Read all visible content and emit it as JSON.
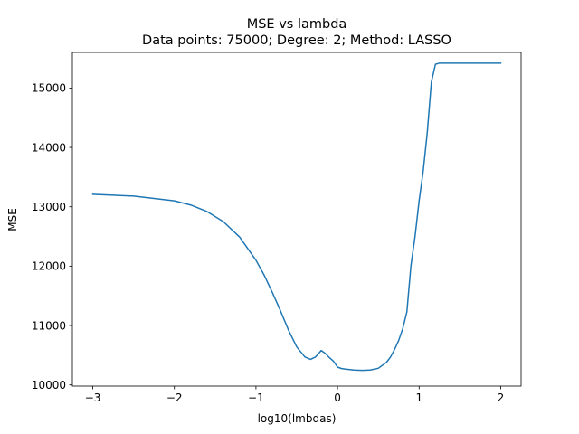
{
  "chart_data": {
    "type": "line",
    "title": "MSE vs lambda",
    "subtitle": "Data points: 75000; Degree: 2; Method: LASSO",
    "xlabel": "log10(lmbdas)",
    "ylabel": "MSE",
    "xlim": [
      -3.25,
      2.25
    ],
    "ylim": [
      9980,
      15600
    ],
    "xticks": [
      -3,
      -2,
      -1,
      0,
      1,
      2
    ],
    "xtick_labels": [
      "−3",
      "−2",
      "−1",
      "0",
      "1",
      "2"
    ],
    "yticks": [
      10000,
      11000,
      12000,
      13000,
      14000,
      15000
    ],
    "ytick_labels": [
      "10000",
      "11000",
      "12000",
      "13000",
      "14000",
      "15000"
    ],
    "grid": false,
    "line_color": "#1f77b4",
    "series": [
      {
        "x": [
          -3.0,
          -2.5,
          -2.0,
          -1.8,
          -1.6,
          -1.4,
          -1.2,
          -1.0,
          -0.9,
          -0.8,
          -0.7,
          -0.6,
          -0.5,
          -0.4,
          -0.33,
          -0.27,
          -0.2,
          -0.15,
          -0.1,
          -0.05,
          0.0,
          0.05,
          0.1,
          0.2,
          0.3,
          0.4,
          0.5,
          0.6,
          0.65,
          0.7,
          0.75,
          0.8,
          0.85,
          0.9,
          0.95,
          1.0,
          1.05,
          1.1,
          1.15,
          1.2,
          1.25,
          1.3,
          1.35,
          1.5,
          2.0
        ],
        "y": [
          13210,
          13180,
          13100,
          13030,
          12920,
          12750,
          12490,
          12100,
          11850,
          11560,
          11250,
          10920,
          10640,
          10470,
          10430,
          10470,
          10580,
          10530,
          10460,
          10400,
          10300,
          10275,
          10265,
          10250,
          10245,
          10250,
          10280,
          10380,
          10470,
          10600,
          10750,
          10950,
          11230,
          12010,
          12500,
          13100,
          13600,
          14250,
          15100,
          15400,
          15420,
          15420,
          15420,
          15420,
          15420
        ]
      }
    ]
  }
}
